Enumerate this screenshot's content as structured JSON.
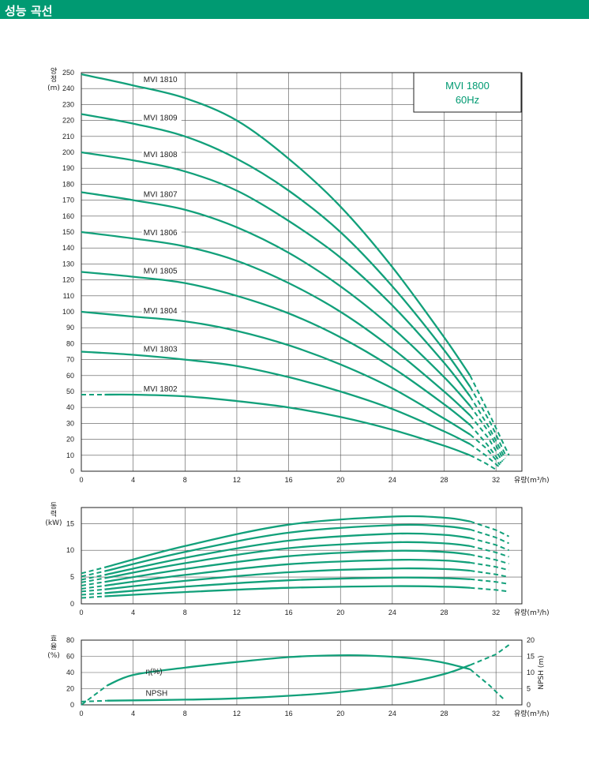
{
  "header": {
    "title": "성능 곡선"
  },
  "colors": {
    "accent": "#009a72",
    "curve": "#12a07a"
  },
  "chart_data": [
    {
      "type": "line",
      "title": "MVI 1800",
      "subtitle": "60Hz",
      "xlabel": "유량(m³/h)",
      "ylabel_chars": [
        "양",
        "정"
      ],
      "ylabel_unit": "(m)",
      "xlim": [
        0,
        34
      ],
      "ylim": [
        0,
        250
      ],
      "x_ticks": [
        0,
        4,
        8,
        12,
        16,
        20,
        24,
        28,
        32
      ],
      "y_ticks": [
        0,
        10,
        20,
        30,
        40,
        50,
        60,
        70,
        80,
        90,
        100,
        110,
        120,
        130,
        140,
        150,
        160,
        170,
        180,
        190,
        200,
        210,
        220,
        230,
        240,
        250
      ],
      "grid": true,
      "series": [
        {
          "name": "MVI 1810",
          "label_x": 4.8,
          "solid": [
            [
              0,
              249
            ],
            [
              4,
              242
            ],
            [
              8,
              234
            ],
            [
              12,
              220
            ],
            [
              16,
              196
            ],
            [
              20,
              166
            ],
            [
              24,
              128
            ],
            [
              28,
              84
            ],
            [
              30,
              60
            ]
          ],
          "dashed": [
            [
              30,
              60
            ],
            [
              31.6,
              34
            ],
            [
              33,
              10
            ]
          ]
        },
        {
          "name": "MVI 1809",
          "label_x": 4.8,
          "solid": [
            [
              0,
              224
            ],
            [
              4,
              218
            ],
            [
              8,
              210
            ],
            [
              12,
              196
            ],
            [
              16,
              176
            ],
            [
              20,
              150
            ],
            [
              24,
              116
            ],
            [
              28,
              76
            ],
            [
              30,
              53
            ]
          ],
          "dashed": [
            [
              30,
              53
            ],
            [
              31.6,
              30
            ],
            [
              32.8,
              9
            ]
          ]
        },
        {
          "name": "MVI 1808",
          "label_x": 4.8,
          "solid": [
            [
              0,
              200
            ],
            [
              4,
              195
            ],
            [
              8,
              188
            ],
            [
              12,
              176
            ],
            [
              16,
              157
            ],
            [
              20,
              134
            ],
            [
              24,
              104
            ],
            [
              28,
              68
            ],
            [
              30,
              47
            ]
          ],
          "dashed": [
            [
              30,
              47
            ],
            [
              31.5,
              27
            ],
            [
              32.7,
              8
            ]
          ]
        },
        {
          "name": "MVI 1807",
          "label_x": 4.8,
          "solid": [
            [
              0,
              175
            ],
            [
              4,
              170
            ],
            [
              8,
              164
            ],
            [
              12,
              153
            ],
            [
              16,
              137
            ],
            [
              20,
              116
            ],
            [
              24,
              90
            ],
            [
              28,
              59
            ],
            [
              30,
              41
            ]
          ],
          "dashed": [
            [
              30,
              41
            ],
            [
              31.5,
              24
            ],
            [
              32.6,
              7
            ]
          ]
        },
        {
          "name": "MVI 1806",
          "label_x": 4.8,
          "solid": [
            [
              0,
              150
            ],
            [
              4,
              146
            ],
            [
              8,
              141
            ],
            [
              12,
              132
            ],
            [
              16,
              118
            ],
            [
              20,
              100
            ],
            [
              24,
              77
            ],
            [
              28,
              50
            ],
            [
              30,
              35
            ]
          ],
          "dashed": [
            [
              30,
              35
            ],
            [
              31.4,
              21
            ],
            [
              32.5,
              6
            ]
          ]
        },
        {
          "name": "MVI 1805",
          "label_x": 4.8,
          "solid": [
            [
              0,
              125
            ],
            [
              4,
              122
            ],
            [
              8,
              118
            ],
            [
              12,
              110
            ],
            [
              16,
              99
            ],
            [
              20,
              84
            ],
            [
              24,
              65
            ],
            [
              28,
              42
            ],
            [
              30,
              29
            ]
          ],
          "dashed": [
            [
              30,
              29
            ],
            [
              31.3,
              17
            ],
            [
              32.4,
              5
            ]
          ]
        },
        {
          "name": "MVI 1804",
          "label_x": 4.8,
          "solid": [
            [
              0,
              100
            ],
            [
              4,
              97
            ],
            [
              8,
              94
            ],
            [
              12,
              88
            ],
            [
              16,
              79
            ],
            [
              20,
              67
            ],
            [
              24,
              52
            ],
            [
              28,
              33
            ],
            [
              30,
              23
            ]
          ],
          "dashed": [
            [
              30,
              23
            ],
            [
              31.3,
              14
            ],
            [
              32.3,
              4
            ]
          ]
        },
        {
          "name": "MVI 1803",
          "label_x": 4.8,
          "solid": [
            [
              0,
              75
            ],
            [
              4,
              73
            ],
            [
              8,
              70
            ],
            [
              12,
              66
            ],
            [
              16,
              59
            ],
            [
              20,
              50
            ],
            [
              24,
              39
            ],
            [
              28,
              25
            ],
            [
              30,
              17
            ]
          ],
          "dashed": [
            [
              30,
              17
            ],
            [
              31.2,
              10
            ],
            [
              32.2,
              3
            ]
          ]
        },
        {
          "name": "MVI 1802",
          "label_x": 4.8,
          "solid": [
            [
              1.8,
              48
            ],
            [
              4,
              48
            ],
            [
              8,
              47
            ],
            [
              12,
              44
            ],
            [
              16,
              40
            ],
            [
              20,
              34
            ],
            [
              24,
              26
            ],
            [
              28,
              16
            ],
            [
              30,
              10
            ]
          ],
          "dashed": [
            [
              0,
              48
            ],
            [
              1.8,
              48
            ],
            [
              1.8,
              48
            ]
          ],
          "tail": [
            [
              30,
              10
            ],
            [
              31.2,
              5
            ],
            [
              32,
              1
            ]
          ]
        }
      ]
    },
    {
      "type": "line",
      "xlabel": "유량(m³/h)",
      "ylabel_chars": [
        "동",
        "력"
      ],
      "ylabel_unit": "(kW)",
      "xlim": [
        0,
        34
      ],
      "ylim": [
        0,
        18
      ],
      "x_ticks": [
        0,
        4,
        8,
        12,
        16,
        20,
        24,
        28,
        32
      ],
      "y_ticks": [
        0,
        5,
        10,
        15
      ],
      "grid": true,
      "series": [
        {
          "solid": [
            [
              1.8,
              6.8
            ],
            [
              8,
              10.8
            ],
            [
              16,
              14.8
            ],
            [
              24,
              16.3
            ],
            [
              28,
              16.1
            ],
            [
              30,
              15.4
            ]
          ],
          "dashed": [
            [
              0,
              5.7
            ],
            [
              1.8,
              6.8
            ]
          ],
          "tail": [
            [
              30,
              15.4
            ],
            [
              32,
              13.8
            ],
            [
              33,
              12.6
            ]
          ]
        },
        {
          "solid": [
            [
              1.8,
              6.1
            ],
            [
              8,
              9.7
            ],
            [
              16,
              13.3
            ],
            [
              24,
              14.7
            ],
            [
              28,
              14.5
            ],
            [
              30,
              13.9
            ]
          ],
          "dashed": [
            [
              0,
              5.1
            ],
            [
              1.8,
              6.1
            ]
          ],
          "tail": [
            [
              30,
              13.9
            ],
            [
              32,
              12.4
            ],
            [
              33,
              11.3
            ]
          ]
        },
        {
          "solid": [
            [
              1.8,
              5.4
            ],
            [
              8,
              8.6
            ],
            [
              16,
              11.8
            ],
            [
              24,
              13.1
            ],
            [
              28,
              12.9
            ],
            [
              30,
              12.3
            ]
          ],
          "dashed": [
            [
              0,
              4.5
            ],
            [
              1.8,
              5.4
            ]
          ],
          "tail": [
            [
              30,
              12.3
            ],
            [
              32,
              11.0
            ],
            [
              33,
              10.0
            ]
          ]
        },
        {
          "solid": [
            [
              1.8,
              4.8
            ],
            [
              8,
              7.6
            ],
            [
              16,
              10.4
            ],
            [
              24,
              11.5
            ],
            [
              28,
              11.3
            ],
            [
              30,
              10.8
            ]
          ],
          "dashed": [
            [
              0,
              4.0
            ],
            [
              1.8,
              4.8
            ]
          ],
          "tail": [
            [
              30,
              10.8
            ],
            [
              32,
              9.6
            ],
            [
              33,
              8.8
            ]
          ]
        },
        {
          "solid": [
            [
              1.8,
              4.1
            ],
            [
              8,
              6.5
            ],
            [
              16,
              8.9
            ],
            [
              24,
              9.9
            ],
            [
              28,
              9.7
            ],
            [
              30,
              9.2
            ]
          ],
          "dashed": [
            [
              0,
              3.4
            ],
            [
              1.8,
              4.1
            ]
          ],
          "tail": [
            [
              30,
              9.2
            ],
            [
              32,
              8.2
            ],
            [
              33,
              7.5
            ]
          ]
        },
        {
          "solid": [
            [
              1.8,
              3.4
            ],
            [
              8,
              5.4
            ],
            [
              16,
              7.4
            ],
            [
              24,
              8.2
            ],
            [
              28,
              8.1
            ],
            [
              30,
              7.7
            ]
          ],
          "dashed": [
            [
              0,
              2.8
            ],
            [
              1.8,
              3.4
            ]
          ],
          "tail": [
            [
              30,
              7.7
            ],
            [
              32,
              6.9
            ],
            [
              33,
              6.3
            ]
          ]
        },
        {
          "solid": [
            [
              1.8,
              2.7
            ],
            [
              8,
              4.3
            ],
            [
              16,
              5.9
            ],
            [
              24,
              6.6
            ],
            [
              28,
              6.5
            ],
            [
              30,
              6.2
            ]
          ],
          "dashed": [
            [
              0,
              2.3
            ],
            [
              1.8,
              2.7
            ]
          ],
          "tail": [
            [
              30,
              6.2
            ],
            [
              32,
              5.5
            ],
            [
              33,
              5.0
            ]
          ]
        },
        {
          "solid": [
            [
              1.8,
              2.0
            ],
            [
              8,
              3.2
            ],
            [
              16,
              4.4
            ],
            [
              24,
              4.9
            ],
            [
              28,
              4.8
            ],
            [
              30,
              4.6
            ]
          ],
          "dashed": [
            [
              0,
              1.7
            ],
            [
              1.8,
              2.0
            ]
          ],
          "tail": [
            [
              30,
              4.6
            ],
            [
              32,
              4.1
            ],
            [
              33,
              3.7
            ]
          ]
        },
        {
          "solid": [
            [
              1.8,
              1.4
            ],
            [
              8,
              2.2
            ],
            [
              16,
              3.0
            ],
            [
              24,
              3.3
            ],
            [
              28,
              3.2
            ],
            [
              30,
              3.0
            ]
          ],
          "dashed": [
            [
              0,
              1.1
            ],
            [
              1.8,
              1.4
            ]
          ],
          "tail": [
            [
              30,
              3.0
            ],
            [
              32,
              2.6
            ],
            [
              33,
              2.3
            ]
          ]
        }
      ]
    },
    {
      "type": "line",
      "xlabel": "유량(m³/h)",
      "ylabel_chars": [
        "효",
        "율"
      ],
      "ylabel_unit": "(%)",
      "y2label": "NPSH (m)",
      "xlim": [
        0,
        34
      ],
      "ylim": [
        0,
        80
      ],
      "y2lim": [
        0,
        20
      ],
      "x_ticks": [
        0,
        4,
        8,
        12,
        16,
        20,
        24,
        28,
        32
      ],
      "y_ticks": [
        0,
        20,
        40,
        60,
        80
      ],
      "y2_ticks": [
        0,
        5,
        10,
        15,
        20
      ],
      "grid": true,
      "efficiency": {
        "label": "η(%)",
        "label_x": 4.6,
        "solid": [
          [
            2,
            24
          ],
          [
            4,
            37
          ],
          [
            8,
            46
          ],
          [
            12,
            53
          ],
          [
            16,
            59
          ],
          [
            19,
            61
          ],
          [
            22,
            61
          ],
          [
            26,
            57
          ],
          [
            28,
            52
          ],
          [
            30,
            44
          ]
        ],
        "dashed": [
          [
            0,
            0
          ],
          [
            2,
            24
          ]
        ],
        "tail": [
          [
            30,
            44
          ],
          [
            31.5,
            24
          ],
          [
            32.6,
            7
          ]
        ]
      },
      "npsh": {
        "label": "NPSH",
        "label_x": 4.6,
        "solid": [
          [
            2,
            1.3
          ],
          [
            8,
            1.6
          ],
          [
            12,
            2.0
          ],
          [
            16,
            2.8
          ],
          [
            20,
            4.0
          ],
          [
            24,
            6.0
          ],
          [
            28,
            9.5
          ],
          [
            30,
            12.3
          ]
        ],
        "dashed": [
          [
            0,
            1.0
          ],
          [
            2,
            1.3
          ]
        ],
        "tail": [
          [
            30,
            12.3
          ],
          [
            32,
            15.6
          ],
          [
            33,
            18.5
          ]
        ]
      }
    }
  ]
}
